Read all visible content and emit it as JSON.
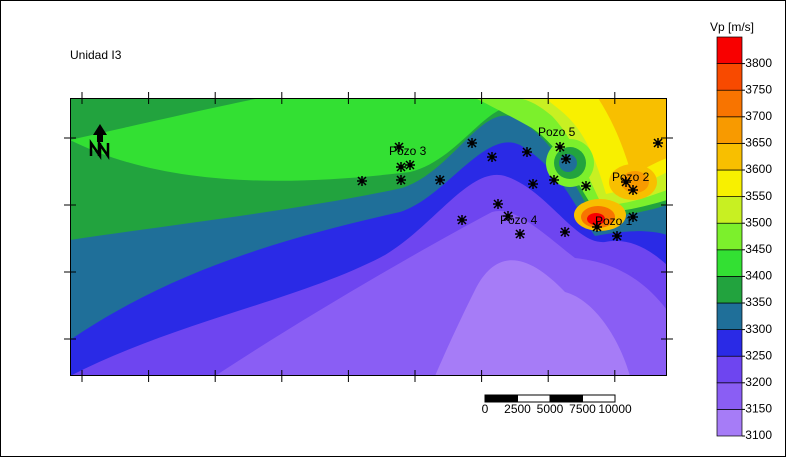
{
  "title": "Unidad I3",
  "colorbar": {
    "label": "Vp [m/s]",
    "ticks": [
      3100,
      3150,
      3200,
      3250,
      3300,
      3350,
      3400,
      3450,
      3500,
      3550,
      3600,
      3650,
      3700,
      3750,
      3800
    ],
    "colors": [
      "#a67cf7",
      "#8a5ef4",
      "#6e45f0",
      "#2a2ae6",
      "#1f6f99",
      "#22a33e",
      "#33e033",
      "#7cf02c",
      "#c8f022",
      "#f8f000",
      "#f8bf00",
      "#f89a00",
      "#f87400",
      "#f84a00",
      "#f80000"
    ]
  },
  "wells": [
    "Pozo 3",
    "Pozo 5",
    "Pozo 2",
    "Pozo 4",
    "Pozo 1"
  ],
  "scale_bar": {
    "labels": [
      "0",
      "2500",
      "5000",
      "7500",
      "10000"
    ]
  }
}
